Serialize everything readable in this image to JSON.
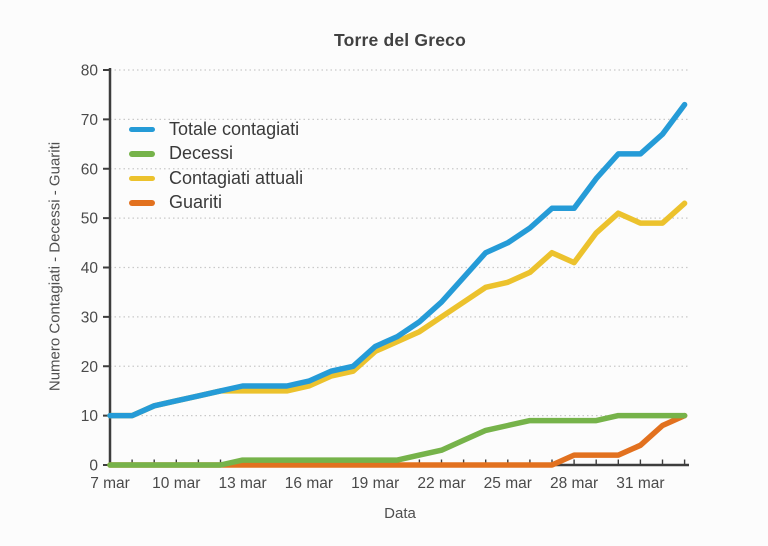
{
  "page": {
    "background": "#fcfcfc"
  },
  "chart_data": {
    "type": "line",
    "title": "Torre del Greco",
    "xlabel": "Data",
    "ylabel": "Numero Contagiati - Decessi - Guariti",
    "ylim": [
      0,
      80
    ],
    "yticks": [
      0,
      10,
      20,
      30,
      40,
      50,
      60,
      70,
      80
    ],
    "x": [
      "7 mar",
      "8 mar",
      "9 mar",
      "10 mar",
      "11 mar",
      "12 mar",
      "13 mar",
      "14 mar",
      "15 mar",
      "16 mar",
      "17 mar",
      "18 mar",
      "19 mar",
      "20 mar",
      "21 mar",
      "22 mar",
      "23 mar",
      "24 mar",
      "25 mar",
      "26 mar",
      "27 mar",
      "28 mar",
      "29 mar",
      "30 mar",
      "31 mar",
      "1 apr",
      "2 apr"
    ],
    "xtick_labels": [
      "7 mar",
      "10 mar",
      "13 mar",
      "16 mar",
      "19 mar",
      "22 mar",
      "25 mar",
      "28 mar",
      "31 mar"
    ],
    "xtick_every": 3,
    "grid": "horizontal-dotted",
    "legend_position": "top-left",
    "series": [
      {
        "name": "Totale contagiati",
        "color": "#259bd7",
        "values": [
          10,
          10,
          12,
          13,
          14,
          15,
          16,
          16,
          16,
          17,
          19,
          20,
          24,
          26,
          29,
          33,
          38,
          43,
          45,
          48,
          52,
          52,
          58,
          63,
          63,
          67,
          73
        ]
      },
      {
        "name": "Decessi",
        "color": "#76b34a",
        "values": [
          0,
          0,
          0,
          0,
          0,
          0,
          1,
          1,
          1,
          1,
          1,
          1,
          1,
          1,
          2,
          3,
          5,
          7,
          8,
          9,
          9,
          9,
          9,
          10,
          10,
          10,
          10
        ]
      },
      {
        "name": "Contagiati attuali",
        "color": "#ecc22d",
        "values": [
          10,
          10,
          12,
          13,
          14,
          15,
          15,
          15,
          15,
          16,
          18,
          19,
          23,
          25,
          27,
          30,
          33,
          36,
          37,
          39,
          43,
          41,
          47,
          51,
          49,
          49,
          53
        ]
      },
      {
        "name": "Guariti",
        "color": "#e2711f",
        "values": [
          0,
          0,
          0,
          0,
          0,
          0,
          0,
          0,
          0,
          0,
          0,
          0,
          0,
          0,
          0,
          0,
          0,
          0,
          0,
          0,
          0,
          2,
          2,
          2,
          4,
          8,
          10
        ]
      }
    ]
  },
  "colors": {
    "axis": "#3d3d3d",
    "grid": "#c9c9c9",
    "tick_text": "#4a4a4a"
  }
}
